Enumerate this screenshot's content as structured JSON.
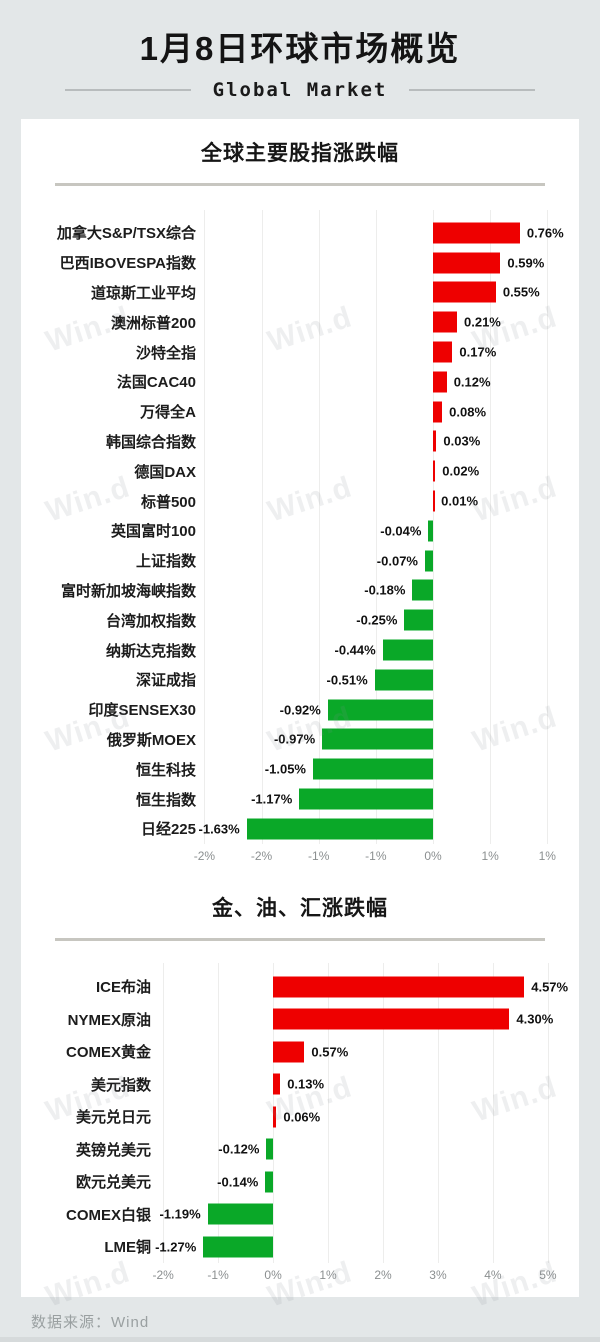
{
  "page": {
    "title": "1月8日环球市场概览",
    "subtitle": "Global Market",
    "source": "数据来源：Wind",
    "watermark": "Win.d"
  },
  "colors": {
    "background": "#e3e7e8",
    "card": "#ffffff",
    "text": "#141414",
    "up": "#ee0000",
    "down": "#0aa828"
  },
  "chart_data": [
    {
      "type": "bar",
      "orientation": "horizontal",
      "title": "全球主要股指涨跌幅",
      "unit": "%",
      "legend_position": "none",
      "grid": true,
      "categories": [
        "加拿大S&P/TSX综合",
        "巴西IBOVESPA指数",
        "道琼斯工业平均",
        "澳洲标普200",
        "沙特全指",
        "法国CAC40",
        "万得全A",
        "韩国综合指数",
        "德国DAX",
        "标普500",
        "英国富时100",
        "上证指数",
        "富时新加坡海峡指数",
        "台湾加权指数",
        "纳斯达克指数",
        "深证成指",
        "印度SENSEX30",
        "俄罗斯MOEX",
        "恒生科技",
        "恒生指数",
        "日经225"
      ],
      "values": [
        0.76,
        0.59,
        0.55,
        0.21,
        0.17,
        0.12,
        0.08,
        0.03,
        0.02,
        0.01,
        -0.04,
        -0.07,
        -0.18,
        -0.25,
        -0.44,
        -0.51,
        -0.92,
        -0.97,
        -1.05,
        -1.17,
        -1.63
      ],
      "value_labels": [
        "0.76%",
        "0.59%",
        "0.55%",
        "0.21%",
        "0.17%",
        "0.12%",
        "0.08%",
        "0.03%",
        "0.02%",
        "0.01%",
        "-0.04%",
        "-0.07%",
        "-0.18%",
        "-0.25%",
        "-0.44%",
        "-0.51%",
        "-0.92%",
        "-0.97%",
        "-1.05%",
        "-1.17%",
        "-1.63%"
      ],
      "axis": {
        "min": -2.03,
        "max": 1.26,
        "ticks": [
          -2,
          -1.5,
          -1,
          -0.5,
          0,
          0.5,
          1
        ],
        "tick_labels": [
          "-2%",
          "-2%",
          "-1%",
          "-1%",
          "0%",
          "1%",
          "1%"
        ]
      }
    },
    {
      "type": "bar",
      "orientation": "horizontal",
      "title": "金、油、汇涨跌幅",
      "unit": "%",
      "legend_position": "none",
      "grid": true,
      "categories": [
        "ICE布油",
        "NYMEX原油",
        "COMEX黄金",
        "美元指数",
        "美元兑日元",
        "英镑兑美元",
        "欧元兑美元",
        "COMEX白银",
        "LME铜"
      ],
      "values": [
        4.57,
        4.3,
        0.57,
        0.13,
        0.06,
        -0.12,
        -0.14,
        -1.19,
        -1.27
      ],
      "value_labels": [
        "4.57%",
        "4.30%",
        "0.57%",
        "0.13%",
        "0.06%",
        "-0.12%",
        "-0.14%",
        "-1.19%",
        "-1.27%"
      ],
      "axis": {
        "min": -2.13,
        "max": 5.53,
        "ticks": [
          -2,
          -1,
          0,
          1,
          2,
          3,
          4,
          5
        ],
        "tick_labels": [
          "-2%",
          "-1%",
          "0%",
          "1%",
          "2%",
          "3%",
          "4%",
          "5%"
        ]
      }
    }
  ]
}
